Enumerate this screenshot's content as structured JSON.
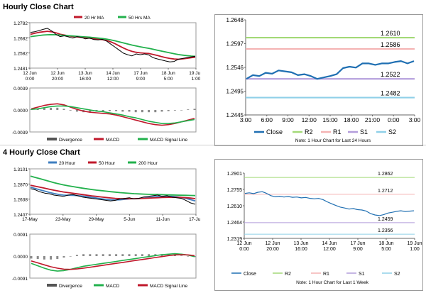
{
  "hourly": {
    "title": "Hourly Close Chart",
    "price_chart": {
      "type": "line",
      "legend": [
        {
          "name": "20 Hr MA",
          "color": "#c0182b"
        },
        {
          "name": "50 Hrs MA",
          "color": "#22b14c"
        }
      ],
      "yticks": [
        "1.2782",
        "1.2682",
        "1.2582",
        "1.2481"
      ],
      "ylim": [
        1.2481,
        1.2782
      ],
      "xticks": [
        {
          "l1": "12 Jun",
          "l2": "0:00"
        },
        {
          "l1": "12 Jun",
          "l2": "20:00"
        },
        {
          "l1": "13 Jun",
          "l2": "16:00"
        },
        {
          "l1": "14 Jun",
          "l2": "12:00"
        },
        {
          "l1": "17 Jun",
          "l2": "9:00"
        },
        {
          "l1": "18 Jun",
          "l2": "5:00"
        },
        {
          "l1": "19 Jun",
          "l2": "1:00"
        }
      ],
      "series": [
        {
          "name": "Close",
          "color": "#000000",
          "values": [
            1.2718,
            1.2722,
            1.273,
            1.2738,
            1.2745,
            1.2728,
            1.2705,
            1.269,
            1.2695,
            1.2688,
            1.268,
            1.269,
            1.2685,
            1.2675,
            1.268,
            1.267,
            1.2668,
            1.2672,
            1.266,
            1.264,
            1.262,
            1.26,
            1.258,
            1.257,
            1.2562,
            1.2575,
            1.257,
            1.2575,
            1.2568,
            1.255,
            1.2542,
            1.2535,
            1.2528,
            1.2522,
            1.2525,
            1.254,
            1.2545,
            1.255,
            1.2555,
            1.256
          ]
        },
        {
          "name": "20 Hr MA",
          "color": "#c0182b",
          "values": [
            1.2705,
            1.2712,
            1.2718,
            1.2722,
            1.2725,
            1.2722,
            1.2715,
            1.2706,
            1.27,
            1.2695,
            1.269,
            1.2688,
            1.2685,
            1.2682,
            1.268,
            1.2676,
            1.2673,
            1.267,
            1.2664,
            1.2655,
            1.2643,
            1.2628,
            1.2614,
            1.2602,
            1.2592,
            1.2586,
            1.2582,
            1.258,
            1.2578,
            1.2572,
            1.2565,
            1.2557,
            1.255,
            1.2545,
            1.2541,
            1.254,
            1.2542,
            1.2546,
            1.255,
            1.2553
          ]
        },
        {
          "name": "50 Hrs MA",
          "color": "#22b14c",
          "values": [
            1.269,
            1.2693,
            1.2697,
            1.27,
            1.2702,
            1.2703,
            1.2702,
            1.27,
            1.2698,
            1.2696,
            1.2694,
            1.2692,
            1.269,
            1.2688,
            1.2686,
            1.2683,
            1.268,
            1.2677,
            1.2673,
            1.2668,
            1.2662,
            1.2655,
            1.2648,
            1.2641,
            1.2634,
            1.2628,
            1.2622,
            1.2617,
            1.2612,
            1.2606,
            1.26,
            1.2594,
            1.2588,
            1.2582,
            1.2576,
            1.2571,
            1.2567,
            1.2564,
            1.2561,
            1.2559
          ]
        }
      ]
    },
    "macd_chart": {
      "type": "line",
      "yticks": [
        "0.0039",
        "0.0000",
        "-0.0039"
      ],
      "ylim": [
        -0.0039,
        0.0039
      ],
      "legend": [
        {
          "name": "Divergence",
          "color": "#555555"
        },
        {
          "name": "MACD",
          "color": "#c0182b"
        },
        {
          "name": "MACD Signal Line",
          "color": "#22b14c"
        }
      ],
      "series": [
        {
          "name": "MACD",
          "values": [
            0.0002,
            0.0005,
            0.0008,
            0.001,
            0.0011,
            0.0009,
            0.0005,
            0.0001,
            -0.0002,
            -0.0004,
            -0.0005,
            -0.0006,
            -0.0007,
            -0.0009,
            -0.0012,
            -0.0015,
            -0.0018,
            -0.0021,
            -0.0024,
            -0.0026,
            -0.0027,
            -0.0026,
            -0.0024,
            -0.0021,
            -0.0018,
            -0.0015
          ]
        },
        {
          "name": "MACD Signal Line",
          "values": [
            0.0001,
            0.0002,
            0.0004,
            0.0006,
            0.0007,
            0.0007,
            0.0006,
            0.0004,
            0.0002,
            0.0,
            -0.0002,
            -0.0003,
            -0.0005,
            -0.0007,
            -0.0009,
            -0.0012,
            -0.0014,
            -0.0017,
            -0.002,
            -0.0022,
            -0.0024,
            -0.0024,
            -0.0023,
            -0.0021,
            -0.0019,
            -0.0017
          ]
        },
        {
          "name": "Divergence",
          "values": [
            0.0001,
            0.0003,
            0.0004,
            0.0004,
            0.0004,
            0.0002,
            -0.0001,
            -0.0003,
            -0.0004,
            -0.0004,
            -0.0003,
            -0.0003,
            -0.0002,
            -0.0002,
            -0.0003,
            -0.0003,
            -0.0004,
            -0.0004,
            -0.0004,
            -0.0004,
            -0.0003,
            -0.0002,
            -0.0001,
            0.0,
            0.0001,
            0.0002
          ]
        }
      ]
    },
    "pivot_chart": {
      "type": "line",
      "yticks": [
        "1.2648",
        "1.2597",
        "1.2546",
        "1.2495",
        "1.2445"
      ],
      "ylim": [
        1.2445,
        1.2648
      ],
      "xticks": [
        "3:00",
        "6:00",
        "9:00",
        "12:00",
        "15:00",
        "18:00",
        "21:00",
        "0:00",
        "3:00"
      ],
      "levels": [
        {
          "name": "R2",
          "value": 1.261,
          "label": "1.2610",
          "color": "#a3d977"
        },
        {
          "name": "R1",
          "value": 1.2586,
          "label": "1.2586",
          "color": "#f4b3b3"
        },
        {
          "name": "S1",
          "value": 1.2522,
          "label": "1.2522",
          "color": "#b39ddb"
        },
        {
          "name": "S2",
          "value": 1.2482,
          "label": "1.2482",
          "color": "#8fd0e8"
        }
      ],
      "close": [
        1.2522,
        1.253,
        1.2528,
        1.2535,
        1.2533,
        1.254,
        1.2538,
        1.2536,
        1.253,
        1.2532,
        1.2528,
        1.2522,
        1.2525,
        1.2528,
        1.2532,
        1.2545,
        1.2548,
        1.2546,
        1.2555,
        1.2555,
        1.2552,
        1.2555,
        1.2555,
        1.2558,
        1.256,
        1.2555,
        1.256
      ],
      "close_color": "#1f6fb2",
      "legend": [
        {
          "name": "Close",
          "color": "#1f6fb2"
        },
        {
          "name": "R2",
          "color": "#a3d977"
        },
        {
          "name": "R1",
          "color": "#f4b3b3"
        },
        {
          "name": "S1",
          "color": "#b39ddb"
        },
        {
          "name": "S2",
          "color": "#8fd0e8"
        }
      ],
      "note": "Note: 1 Hour Chart for Last 24 Hours"
    }
  },
  "four_hourly": {
    "title": "4 Hourly Close Chart",
    "price_chart": {
      "type": "line",
      "legend": [
        {
          "name": "20 Hour",
          "color": "#3f7fc0"
        },
        {
          "name": "50 Hour",
          "color": "#c0182b"
        },
        {
          "name": "200 Hour",
          "color": "#22b14c"
        }
      ],
      "yticks": [
        "1.3101",
        "1.2870",
        "1.2638",
        "1.2407"
      ],
      "ylim": [
        1.2407,
        1.3101
      ],
      "xticks": [
        "17-May",
        "23-May",
        "29-May",
        "5-Jun",
        "11-Jun",
        "17-Jun"
      ],
      "series": [
        {
          "name": "Close",
          "color": "#000000",
          "values": [
            1.28,
            1.278,
            1.275,
            1.273,
            1.272,
            1.27,
            1.269,
            1.268,
            1.27,
            1.271,
            1.269,
            1.267,
            1.266,
            1.265,
            1.264,
            1.263,
            1.262,
            1.261,
            1.262,
            1.264,
            1.265,
            1.266,
            1.264,
            1.265,
            1.267,
            1.268,
            1.269,
            1.27,
            1.268,
            1.269,
            1.267,
            1.266,
            1.265,
            1.262,
            1.258,
            1.256
          ]
        },
        {
          "name": "20 Hour",
          "color": "#3f7fc0",
          "values": [
            1.282,
            1.28,
            1.278,
            1.276,
            1.274,
            1.2725,
            1.271,
            1.27,
            1.2698,
            1.2696,
            1.2692,
            1.2685,
            1.2675,
            1.2665,
            1.2655,
            1.2645,
            1.2635,
            1.2628,
            1.2625,
            1.2628,
            1.2635,
            1.2642,
            1.2645,
            1.2648,
            1.2655,
            1.2662,
            1.267,
            1.2678,
            1.268,
            1.2682,
            1.268,
            1.2675,
            1.2665,
            1.265,
            1.263,
            1.261
          ]
        },
        {
          "name": "50 Hour",
          "color": "#c0182b",
          "values": [
            1.285,
            1.2835,
            1.282,
            1.2805,
            1.279,
            1.2775,
            1.276,
            1.2748,
            1.2738,
            1.2728,
            1.2718,
            1.2708,
            1.2698,
            1.2688,
            1.268,
            1.2672,
            1.2664,
            1.2656,
            1.265,
            1.2646,
            1.2644,
            1.2644,
            1.2645,
            1.2647,
            1.265,
            1.2653,
            1.2656,
            1.266,
            1.2663,
            1.2665,
            1.2666,
            1.2666,
            1.2664,
            1.266,
            1.2654,
            1.2646
          ]
        },
        {
          "name": "200 Hour",
          "color": "#22b14c",
          "values": [
            1.299,
            1.297,
            1.295,
            1.293,
            1.291,
            1.289,
            1.2872,
            1.2856,
            1.2842,
            1.283,
            1.2818,
            1.2806,
            1.2795,
            1.2785,
            1.2776,
            1.2768,
            1.276,
            1.2752,
            1.2745,
            1.2738,
            1.2732,
            1.2727,
            1.2722,
            1.2718,
            1.2715,
            1.2712,
            1.271,
            1.2708,
            1.2706,
            1.2704,
            1.2702,
            1.27,
            1.2698,
            1.2696,
            1.2694,
            1.2692
          ]
        }
      ]
    },
    "macd_chart": {
      "type": "line",
      "yticks": [
        "0.0091",
        "0.0000",
        "-0.0091"
      ],
      "ylim": [
        -0.0091,
        0.0091
      ],
      "legend": [
        {
          "name": "Divergence",
          "color": "#555555"
        },
        {
          "name": "MACD",
          "color": "#22b14c"
        },
        {
          "name": "MACD Signal Line",
          "color": "#c0182b"
        }
      ],
      "series": [
        {
          "name": "MACD",
          "values": [
            -0.003,
            -0.004,
            -0.005,
            -0.0058,
            -0.0062,
            -0.006,
            -0.0055,
            -0.0048,
            -0.0042,
            -0.0038,
            -0.0034,
            -0.003,
            -0.0026,
            -0.0022,
            -0.0018,
            -0.0014,
            -0.001,
            -0.0006,
            -0.0002,
            0.0002,
            0.0006,
            0.0008,
            0.001,
            0.0008,
            0.0004,
            -0.0002
          ]
        },
        {
          "name": "MACD Signal Line",
          "values": [
            -0.002,
            -0.0028,
            -0.0036,
            -0.0044,
            -0.005,
            -0.0054,
            -0.0055,
            -0.0053,
            -0.005,
            -0.0046,
            -0.0042,
            -0.0038,
            -0.0034,
            -0.003,
            -0.0026,
            -0.0022,
            -0.0018,
            -0.0014,
            -0.001,
            -0.0006,
            -0.0002,
            0.0002,
            0.0005,
            0.0006,
            0.0005,
            0.0002
          ]
        },
        {
          "name": "Divergence",
          "values": [
            -0.001,
            -0.0012,
            -0.0014,
            -0.0014,
            -0.0012,
            -0.0006,
            0.0,
            0.0005,
            0.0008,
            0.0008,
            0.0008,
            0.0008,
            0.0008,
            0.0008,
            0.0008,
            0.0008,
            0.0008,
            0.0008,
            0.0008,
            0.0008,
            0.0008,
            0.0006,
            0.0005,
            0.0002,
            -0.0001,
            -0.0004
          ]
        }
      ]
    },
    "pivot_chart": {
      "type": "line",
      "yticks": [
        "1.2901",
        "1.2755",
        "1.2610",
        "1.2464",
        "1.2319"
      ],
      "ylim": [
        1.2319,
        1.2901
      ],
      "xticks": [
        {
          "l1": "12 Jun",
          "l2": "0:00"
        },
        {
          "l1": "12 Jun",
          "l2": "20:00"
        },
        {
          "l1": "13 Jun",
          "l2": "16:00"
        },
        {
          "l1": "14 Jun",
          "l2": "12:00"
        },
        {
          "l1": "17 Jun",
          "l2": "9:00"
        },
        {
          "l1": "18 Jun",
          "l2": "5:00"
        },
        {
          "l1": "19 Jun",
          "l2": "1:00"
        }
      ],
      "levels": [
        {
          "name": "R2",
          "value": 1.2862,
          "label": "1.2862",
          "color": "#a3d977"
        },
        {
          "name": "R1",
          "value": 1.2712,
          "label": "1.2712",
          "color": "#f4b3b3"
        },
        {
          "name": "S1",
          "value": 1.2459,
          "label": "1.2459",
          "color": "#b39ddb"
        },
        {
          "name": "S2",
          "value": 1.2356,
          "label": "1.2356",
          "color": "#8fd0e8"
        }
      ],
      "close": [
        1.272,
        1.2725,
        1.2718,
        1.273,
        1.2735,
        1.272,
        1.27,
        1.269,
        1.2695,
        1.2688,
        1.2692,
        1.2685,
        1.2688,
        1.268,
        1.2684,
        1.2676,
        1.2672,
        1.2675,
        1.2665,
        1.2645,
        1.2628,
        1.2612,
        1.2598,
        1.259,
        1.258,
        1.2585,
        1.2575,
        1.2572,
        1.2562,
        1.254,
        1.2528,
        1.2522,
        1.253,
        1.2545,
        1.2552,
        1.256,
        1.2565,
        1.2558,
        1.2562,
        1.2565
      ],
      "close_color": "#1f6fb2",
      "legend": [
        {
          "name": "Close",
          "color": "#1f6fb2"
        },
        {
          "name": "R2",
          "color": "#a3d977"
        },
        {
          "name": "R1",
          "color": "#f4b3b3"
        },
        {
          "name": "S1",
          "color": "#b39ddb"
        },
        {
          "name": "S2",
          "color": "#8fd0e8"
        }
      ],
      "note": "Note: 1 Hour Chart for Last 1 Week"
    }
  }
}
